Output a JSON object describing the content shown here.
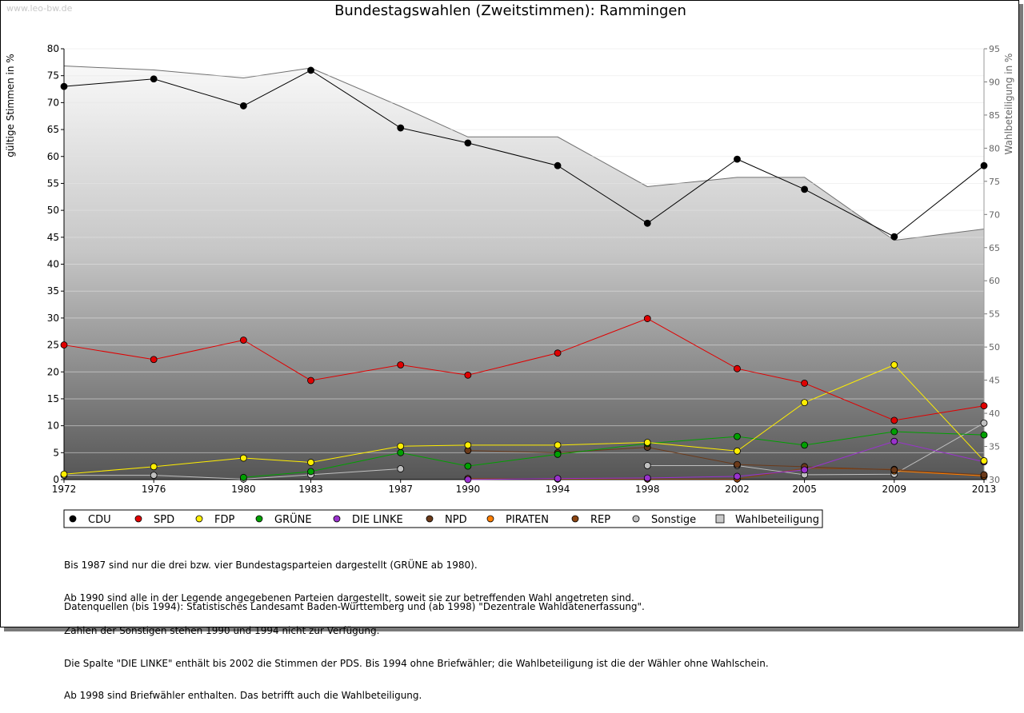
{
  "watermark": "www.leo-bw.de",
  "chart_data": {
    "type": "line",
    "title": "Bundestagswahlen (Zweitstimmen): Rammingen",
    "ylabel": "gültige Stimmen in %",
    "y2label": "Wahlbeteiligung in %",
    "x": [
      "1972",
      "1976",
      "1980",
      "1983",
      "1987",
      "1990",
      "1994",
      "1998",
      "2002",
      "2005",
      "2009",
      "2013"
    ],
    "x_numeric": [
      1972,
      1976,
      1980,
      1983,
      1987,
      1990,
      1994,
      1998,
      2002,
      2005,
      2009,
      2013
    ],
    "ylim": [
      0,
      80
    ],
    "yticks": [
      0,
      5,
      10,
      15,
      20,
      25,
      30,
      35,
      40,
      45,
      50,
      55,
      60,
      65,
      70,
      75,
      80
    ],
    "y2lim": [
      30,
      95
    ],
    "y2ticks": [
      30,
      35,
      40,
      45,
      50,
      55,
      60,
      65,
      70,
      75,
      80,
      85,
      90,
      95
    ],
    "grid": true,
    "legend_position": "bottom",
    "series": [
      {
        "name": "CDU",
        "color": "#000000",
        "values": [
          73.0,
          74.4,
          69.4,
          76.0,
          65.3,
          62.5,
          58.3,
          47.6,
          59.5,
          53.9,
          45.1,
          58.3
        ]
      },
      {
        "name": "SPD",
        "color": "#e00000",
        "values": [
          25.0,
          22.3,
          25.9,
          18.4,
          21.3,
          19.4,
          23.5,
          29.9,
          20.6,
          17.9,
          11.0,
          13.7
        ]
      },
      {
        "name": "FDP",
        "color": "#ffee00",
        "values": [
          1.0,
          2.4,
          4.0,
          3.2,
          6.2,
          6.4,
          6.4,
          6.9,
          5.3,
          14.3,
          21.3,
          3.5
        ]
      },
      {
        "name": "GRÜNE",
        "color": "#00a000",
        "values": [
          null,
          null,
          0.4,
          1.5,
          5.0,
          2.5,
          4.7,
          6.7,
          8.0,
          6.4,
          8.9,
          8.3
        ]
      },
      {
        "name": "DIE LINKE",
        "color": "#9a32cd",
        "values": [
          null,
          null,
          null,
          null,
          null,
          0.0,
          0.2,
          0.3,
          0.6,
          1.8,
          7.1,
          3.3
        ]
      },
      {
        "name": "NPD",
        "color": "#6b3a1a",
        "values": [
          null,
          null,
          null,
          null,
          null,
          5.4,
          5.0,
          6.0,
          2.8,
          2.4,
          1.8,
          0.9
        ]
      },
      {
        "name": "PIRATEN",
        "color": "#ff7f00",
        "values": [
          null,
          null,
          null,
          null,
          null,
          null,
          null,
          null,
          null,
          null,
          1.6,
          0.7
        ]
      },
      {
        "name": "REP",
        "color": "#8b4513",
        "values": [
          null,
          null,
          null,
          null,
          null,
          0.2,
          0.1,
          0.1,
          0.1,
          2.1,
          1.9,
          0.6
        ]
      },
      {
        "name": "Sonstige",
        "color": "#c0c0c0",
        "values": [
          0.8,
          0.8,
          0.1,
          0.9,
          2.0,
          null,
          null,
          2.6,
          2.6,
          0.9,
          1.0,
          10.5
        ]
      }
    ],
    "turnout": {
      "name": "Wahlbeteiligung",
      "color": "#c8c8c8",
      "values": [
        92.4,
        91.8,
        90.6,
        92.1,
        86.3,
        81.7,
        81.7,
        74.2,
        75.6,
        75.6,
        66.1,
        67.8
      ]
    }
  },
  "notes": [
    "Bis 1987 sind nur die drei bzw. vier Bundestagsparteien dargestellt (GRÜNE ab 1980).",
    "Ab 1990 sind alle in der Legende angegebenen Parteien dargestellt, soweit sie zur betreffenden Wahl angetreten sind.",
    "Zahlen der Sonstigen stehen 1990 und 1994 nicht zur Verfügung.",
    "Die Spalte \"DIE LINKE\" enthält bis 2002 die Stimmen der PDS. Bis 1994 ohne Briefwähler; die Wahlbeteiligung ist die der Wähler ohne Wahlschein.",
    "Ab 1998 sind Briefwähler enthalten. Das betrifft auch die Wahlbeteiligung."
  ],
  "source": "Datenquellen (bis 1994): Statistisches Landesamt Baden-Württemberg und (ab 1998) \"Dezentrale Wahldatenerfassung\"."
}
